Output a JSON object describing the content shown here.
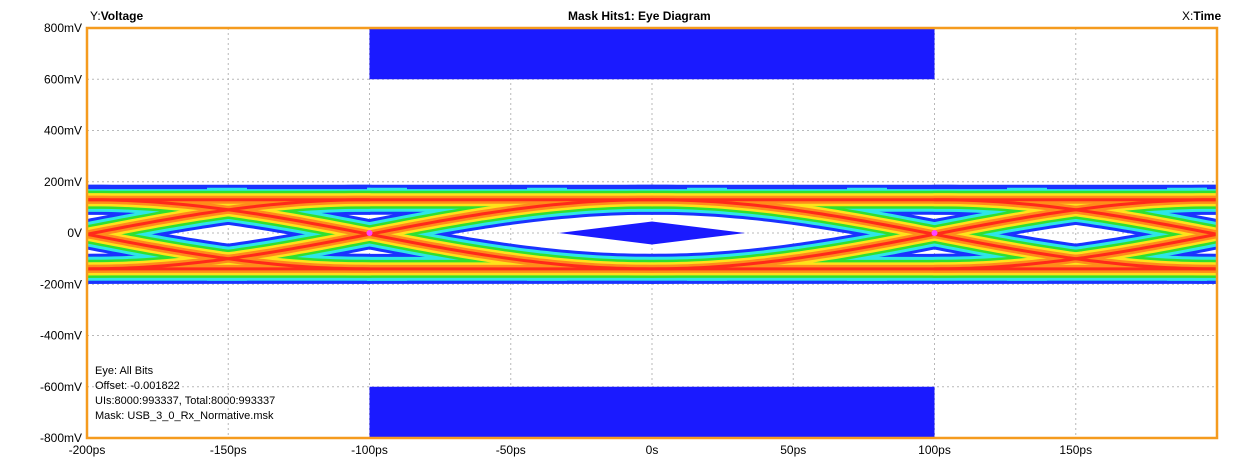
{
  "header": {
    "y_prefix": "Y:",
    "y_name": "Voltage",
    "title": "Mask Hits1: Eye Diagram",
    "x_prefix": "X:",
    "x_name": "Time"
  },
  "info": {
    "eye": "Eye: All Bits",
    "offset": "Offset: -0.001822",
    "uis": "UIs:8000:993337, Total:8000:993337",
    "mask": "Mask: USB_3_0_Rx_Normative.msk"
  },
  "colors": {
    "frame": "#f59b1e",
    "grid": "#b8b8b8",
    "mask": "#1a1aff",
    "heat_outer": "#1a33ff",
    "heat_cyan": "#2ee6e6",
    "heat_green": "#30e030",
    "heat_yellow": "#ffe21a",
    "heat_orange": "#ff8c1a",
    "heat_red": "#ff2a1a",
    "crossing": "#ff44ff"
  },
  "chart_data": {
    "type": "heatmap",
    "title": "Mask Hits1: Eye Diagram",
    "xlabel": "Time",
    "ylabel": "Voltage",
    "xlim": [
      -200,
      200
    ],
    "ylim": [
      -800,
      800
    ],
    "x_unit": "ps",
    "y_unit": "mV",
    "grid": true,
    "x_ticks": [
      -200,
      -150,
      -100,
      -50,
      0,
      50,
      100,
      150
    ],
    "x_tick_labels": [
      "-200ps",
      "-150ps",
      "-100ps",
      "-50ps",
      "0s",
      "50ps",
      "100ps",
      "150ps"
    ],
    "y_ticks": [
      800,
      600,
      400,
      200,
      0,
      -200,
      -400,
      -600,
      -800
    ],
    "y_tick_labels": [
      "800mV",
      "600mV",
      "400mV",
      "200mV",
      "0V",
      "-200mV",
      "-400mV",
      "-600mV",
      "-800mV"
    ],
    "eye": {
      "unit_interval_ps": 200,
      "crossing_times_ps": [
        -100,
        100
      ],
      "high_level_mv": 130,
      "low_level_mv": -140,
      "outer_high_mv": 175,
      "outer_low_mv": -190
    },
    "mask": {
      "top_region": {
        "t_from": -100,
        "t_to": 100,
        "v_from": 600,
        "v_to": 800
      },
      "bottom_region": {
        "t_from": -100,
        "t_to": 100,
        "v_from": -800,
        "v_to": -600
      },
      "center_diamond": [
        [
          -33,
          0
        ],
        [
          0,
          45
        ],
        [
          33,
          0
        ],
        [
          0,
          -45
        ]
      ]
    }
  }
}
